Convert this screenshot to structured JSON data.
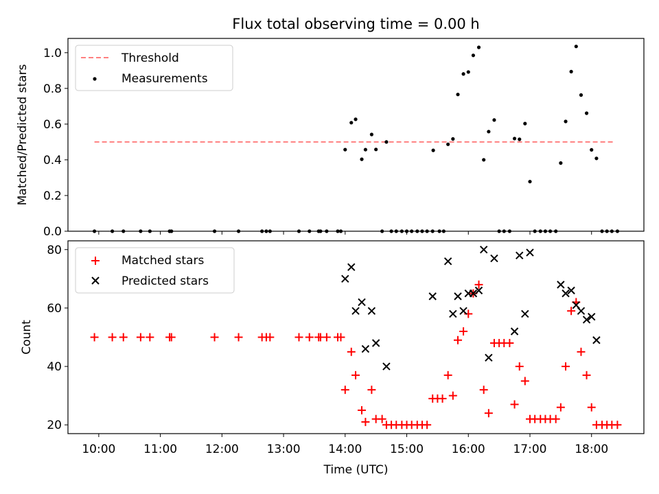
{
  "chart_data": [
    {
      "type": "scatter",
      "title": "Flux total observing time = 0.00 h",
      "xlabel": "",
      "ylabel": "Matched/Predicted stars",
      "xlim": [
        9.5,
        18.85
      ],
      "ylim": [
        0.0,
        1.08
      ],
      "yticks": [
        0.0,
        0.2,
        0.4,
        0.6,
        0.8,
        1.0
      ],
      "ytick_labels": [
        "0.0",
        "0.2",
        "0.4",
        "0.6",
        "0.8",
        "1.0"
      ],
      "grid": false,
      "legend": "upper-left",
      "threshold": {
        "name": "Threshold",
        "value": 0.5,
        "x_range": [
          9.93,
          18.37
        ],
        "color": "#ff7f7f"
      },
      "series": [
        {
          "name": "Measurements",
          "color": "#000000",
          "x": [
            9.93,
            10.22,
            10.4,
            10.68,
            10.83,
            11.15,
            11.18,
            11.88,
            12.27,
            12.65,
            12.72,
            12.78,
            13.25,
            13.42,
            13.57,
            13.6,
            13.7,
            13.88,
            13.93,
            14.0,
            14.1,
            14.17,
            14.27,
            14.33,
            14.43,
            14.5,
            14.6,
            14.67,
            14.75,
            14.83,
            14.92,
            15.0,
            15.08,
            15.17,
            15.25,
            15.33,
            15.42,
            15.43,
            15.53,
            15.6,
            15.67,
            15.75,
            15.83,
            15.92,
            16.0,
            16.08,
            16.17,
            16.25,
            16.33,
            16.42,
            16.5,
            16.58,
            16.67,
            16.75,
            16.83,
            16.92,
            17.0,
            17.08,
            17.17,
            17.25,
            17.33,
            17.42,
            17.5,
            17.58,
            17.67,
            17.75,
            17.83,
            17.92,
            18.0,
            18.08,
            18.17,
            18.25,
            18.33,
            18.42
          ],
          "y": [
            0,
            0,
            0,
            0,
            0,
            0,
            0,
            0,
            0,
            0,
            0,
            0,
            0,
            0,
            0,
            0,
            0,
            0,
            0,
            0.457,
            0.608,
            0.627,
            0.403,
            0.457,
            0.542,
            0.458,
            0,
            0.5,
            0,
            0,
            0,
            0,
            0,
            0,
            0,
            0,
            0,
            0.453,
            0,
            0,
            0.487,
            0.517,
            0.766,
            0.881,
            0.892,
            0.985,
            1.03,
            0.4,
            0.558,
            0.623,
            0,
            0,
            0,
            0.519,
            0.515,
            0.603,
            0.278,
            0,
            0,
            0,
            0,
            0,
            0.382,
            0.615,
            0.894,
            1.035,
            0.763,
            0.661,
            0.456,
            0.408,
            0,
            0,
            0,
            0
          ]
        }
      ]
    },
    {
      "type": "scatter",
      "title": "",
      "xlabel": "Time (UTC)",
      "ylabel": "Count",
      "xlim": [
        9.5,
        18.85
      ],
      "ylim": [
        17,
        83
      ],
      "yticks": [
        20,
        40,
        60,
        80
      ],
      "ytick_labels": [
        "20",
        "40",
        "60",
        "80"
      ],
      "xticks": [
        10,
        11,
        12,
        13,
        14,
        15,
        16,
        17,
        18
      ],
      "xtick_labels": [
        "10:00",
        "11:00",
        "12:00",
        "13:00",
        "14:00",
        "15:00",
        "16:00",
        "17:00",
        "18:00"
      ],
      "grid": false,
      "legend": "upper-left",
      "series": [
        {
          "name": "Matched stars",
          "marker": "plus",
          "color": "#ff0000",
          "x": [
            9.93,
            10.22,
            10.4,
            10.68,
            10.83,
            11.15,
            11.18,
            11.88,
            12.27,
            12.65,
            12.72,
            12.78,
            13.25,
            13.42,
            13.57,
            13.6,
            13.7,
            13.88,
            13.93,
            14.0,
            14.1,
            14.17,
            14.27,
            14.33,
            14.43,
            14.5,
            14.6,
            14.67,
            14.75,
            14.83,
            14.92,
            15.0,
            15.08,
            15.17,
            15.25,
            15.33,
            15.42,
            15.5,
            15.58,
            15.67,
            15.75,
            15.83,
            15.92,
            16.0,
            16.08,
            16.17,
            16.25,
            16.33,
            16.42,
            16.5,
            16.58,
            16.67,
            16.75,
            16.83,
            16.92,
            17.0,
            17.08,
            17.17,
            17.25,
            17.33,
            17.42,
            17.5,
            17.58,
            17.67,
            17.75,
            17.83,
            17.92,
            18.0,
            18.08,
            18.17,
            18.25,
            18.33,
            18.42
          ],
          "y": [
            50,
            50,
            50,
            50,
            50,
            50,
            50,
            50,
            50,
            50,
            50,
            50,
            50,
            50,
            50,
            50,
            50,
            50,
            50,
            32,
            45,
            37,
            25,
            21,
            32,
            22,
            22,
            20,
            20,
            20,
            20,
            20,
            20,
            20,
            20,
            20,
            29,
            29,
            29,
            37,
            30,
            49,
            52,
            58,
            65,
            68,
            32,
            24,
            48,
            48,
            48,
            48,
            27,
            40,
            35,
            22,
            22,
            22,
            22,
            22,
            22,
            26,
            40,
            59,
            62,
            45,
            37,
            26,
            20,
            20,
            20,
            20,
            20
          ]
        },
        {
          "name": "Predicted stars",
          "marker": "x",
          "color": "#000000",
          "x": [
            14.0,
            14.1,
            14.17,
            14.27,
            14.33,
            14.43,
            14.5,
            14.67,
            15.42,
            15.67,
            15.75,
            15.83,
            15.92,
            16.0,
            16.08,
            16.17,
            16.25,
            16.33,
            16.42,
            16.75,
            16.83,
            16.92,
            17.0,
            17.5,
            17.58,
            17.67,
            17.75,
            17.83,
            17.92,
            18.0,
            18.08
          ],
          "y": [
            70,
            74,
            59,
            62,
            46,
            59,
            48,
            40,
            64,
            76,
            58,
            64,
            59,
            65,
            65,
            66,
            80,
            43,
            77,
            52,
            78,
            58,
            79,
            68,
            65,
            66,
            61,
            59,
            56,
            57,
            49
          ]
        }
      ]
    }
  ]
}
